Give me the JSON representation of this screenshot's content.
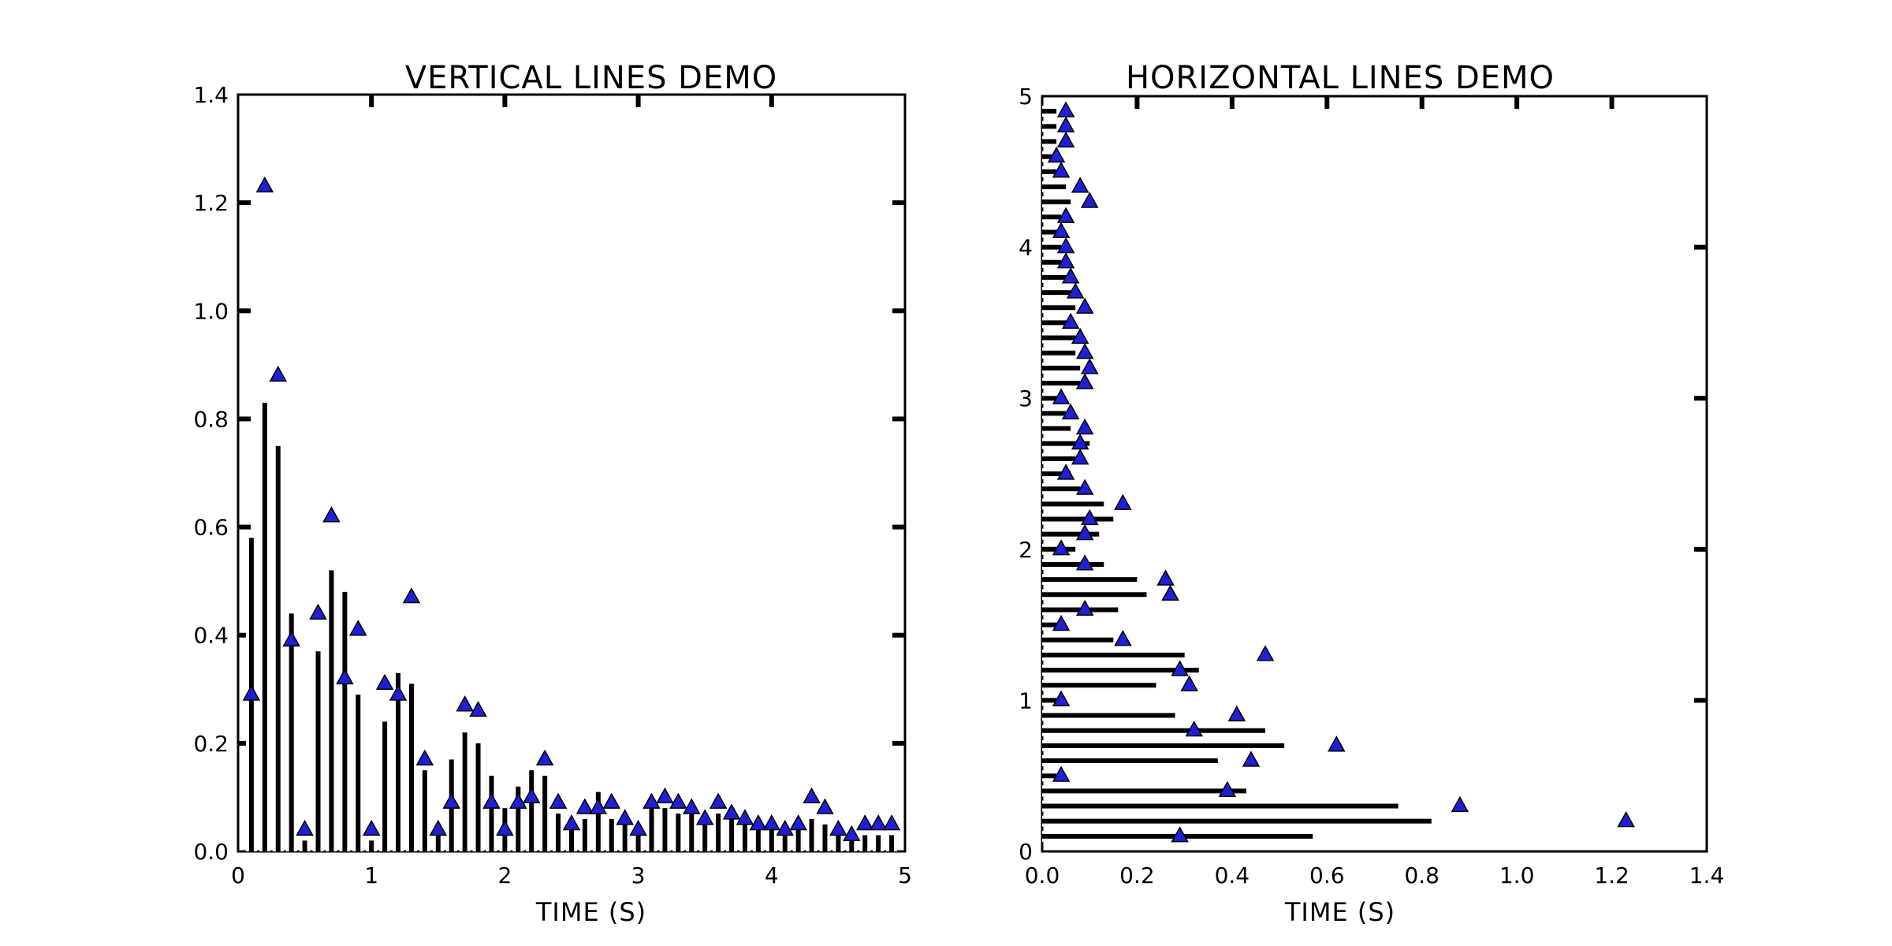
{
  "chart_data": [
    {
      "type": "vlines",
      "title": "VERTICAL LINES DEMO",
      "xlabel": "TIME (S)",
      "ylabel": "",
      "xlim": [
        0,
        5
      ],
      "ylim": [
        0,
        1.4
      ],
      "xticks": [
        "0",
        "1",
        "2",
        "3",
        "4",
        "5"
      ],
      "yticks": [
        "0.0",
        "0.2",
        "0.4",
        "0.6",
        "0.8",
        "1.0",
        "1.2",
        "1.4"
      ],
      "xtick_values": [
        0,
        1,
        2,
        3,
        4,
        5
      ],
      "ytick_values": [
        0,
        0.2,
        0.4,
        0.6,
        0.8,
        1.0,
        1.2,
        1.4
      ],
      "grid": false,
      "marker_color": "#1f1fd6",
      "line_color": "#000000",
      "series": [
        {
          "marker": "triangle",
          "x": [
            0.1,
            0.2,
            0.3,
            0.4,
            0.5,
            0.6,
            0.7,
            0.8,
            0.9,
            1.0,
            1.1,
            1.2,
            1.3,
            1.4,
            1.5,
            1.6,
            1.7,
            1.8,
            1.9,
            2.0,
            2.1,
            2.2,
            2.3,
            2.4,
            2.5,
            2.6,
            2.7,
            2.8,
            2.9,
            3.0,
            3.1,
            3.2,
            3.3,
            3.4,
            3.5,
            3.6,
            3.7,
            3.8,
            3.9,
            4.0,
            4.1,
            4.2,
            4.3,
            4.4,
            4.5,
            4.6,
            4.7,
            4.8,
            4.9
          ],
          "values": [
            0.29,
            1.23,
            0.88,
            0.39,
            0.04,
            0.44,
            0.62,
            0.32,
            0.41,
            0.04,
            0.31,
            0.29,
            0.47,
            0.17,
            0.04,
            0.09,
            0.27,
            0.26,
            0.09,
            0.04,
            0.09,
            0.1,
            0.17,
            0.09,
            0.05,
            0.08,
            0.08,
            0.09,
            0.06,
            0.04,
            0.09,
            0.1,
            0.09,
            0.08,
            0.06,
            0.09,
            0.07,
            0.06,
            0.05,
            0.05,
            0.04,
            0.05,
            0.1,
            0.08,
            0.04,
            0.03,
            0.05,
            0.05,
            0.05
          ],
          "line_top": [
            0.58,
            0.83,
            0.75,
            0.44,
            0.02,
            0.37,
            0.52,
            0.48,
            0.29,
            0.02,
            0.24,
            0.33,
            0.31,
            0.15,
            0.05,
            0.17,
            0.22,
            0.2,
            0.14,
            0.08,
            0.12,
            0.15,
            0.14,
            0.07,
            0.06,
            0.06,
            0.11,
            0.06,
            0.06,
            0.05,
            0.08,
            0.08,
            0.07,
            0.07,
            0.06,
            0.07,
            0.06,
            0.06,
            0.04,
            0.04,
            0.04,
            0.04,
            0.06,
            0.05,
            0.03,
            0.02,
            0.03,
            0.03,
            0.03
          ]
        }
      ]
    },
    {
      "type": "hlines",
      "title": "HORIZONTAL LINES DEMO",
      "xlabel": "TIME (S)",
      "ylabel": "",
      "xlim": [
        0,
        1.4
      ],
      "ylim": [
        0,
        5
      ],
      "xticks": [
        "0.0",
        "0.2",
        "0.4",
        "0.6",
        "0.8",
        "1.0",
        "1.2",
        "1.4"
      ],
      "yticks": [
        "0",
        "1",
        "2",
        "3",
        "4",
        "5"
      ],
      "xtick_values": [
        0,
        0.2,
        0.4,
        0.6,
        0.8,
        1.0,
        1.2,
        1.4
      ],
      "ytick_values": [
        0,
        1,
        2,
        3,
        4,
        5
      ],
      "grid": false,
      "marker_color": "#1f1fd6",
      "line_color": "#000000",
      "series": [
        {
          "marker": "triangle",
          "y": [
            0.1,
            0.2,
            0.3,
            0.4,
            0.5,
            0.6,
            0.7,
            0.8,
            0.9,
            1.0,
            1.1,
            1.2,
            1.3,
            1.4,
            1.5,
            1.6,
            1.7,
            1.8,
            1.9,
            2.0,
            2.1,
            2.2,
            2.3,
            2.4,
            2.5,
            2.6,
            2.7,
            2.8,
            2.9,
            3.0,
            3.1,
            3.2,
            3.3,
            3.4,
            3.5,
            3.6,
            3.7,
            3.8,
            3.9,
            4.0,
            4.1,
            4.2,
            4.3,
            4.4,
            4.5,
            4.6,
            4.7,
            4.8,
            4.9
          ],
          "values": [
            0.29,
            1.23,
            0.88,
            0.39,
            0.04,
            0.44,
            0.62,
            0.32,
            0.41,
            0.04,
            0.31,
            0.29,
            0.47,
            0.17,
            0.04,
            0.09,
            0.27,
            0.26,
            0.09,
            0.04,
            0.09,
            0.1,
            0.17,
            0.09,
            0.05,
            0.08,
            0.08,
            0.09,
            0.06,
            0.04,
            0.09,
            0.1,
            0.09,
            0.08,
            0.06,
            0.09,
            0.07,
            0.06,
            0.05,
            0.05,
            0.04,
            0.05,
            0.1,
            0.08,
            0.04,
            0.03,
            0.05,
            0.05,
            0.05
          ],
          "line_end": [
            0.57,
            0.82,
            0.75,
            0.43,
            0.03,
            0.37,
            0.51,
            0.47,
            0.28,
            0.03,
            0.24,
            0.33,
            0.3,
            0.15,
            0.05,
            0.16,
            0.22,
            0.2,
            0.13,
            0.07,
            0.12,
            0.15,
            0.13,
            0.08,
            0.06,
            0.07,
            0.1,
            0.06,
            0.05,
            0.05,
            0.08,
            0.08,
            0.07,
            0.07,
            0.06,
            0.07,
            0.06,
            0.06,
            0.04,
            0.04,
            0.04,
            0.04,
            0.06,
            0.05,
            0.03,
            0.02,
            0.03,
            0.03,
            0.03
          ]
        }
      ]
    }
  ]
}
